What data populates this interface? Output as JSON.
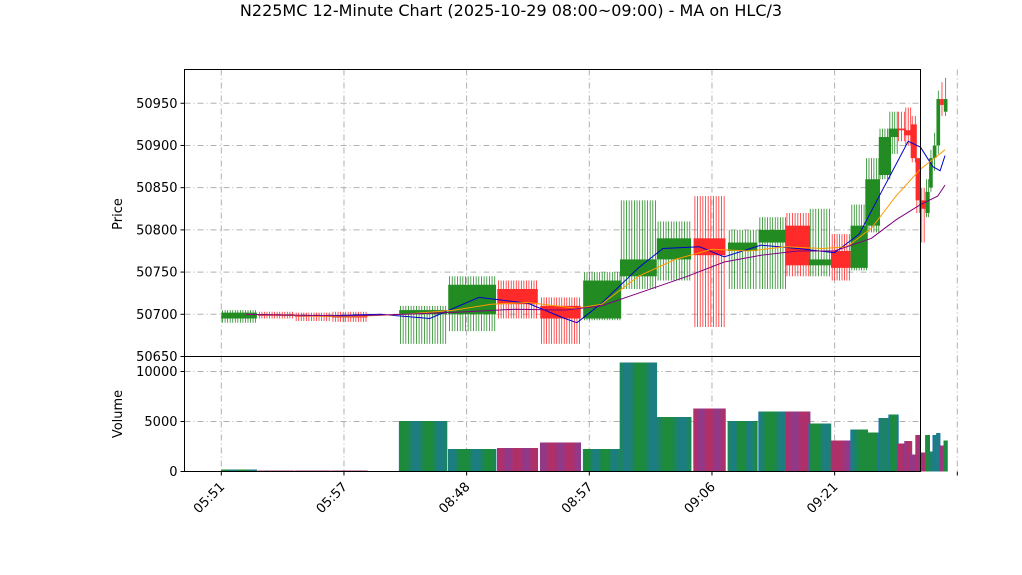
{
  "chart_data": {
    "type": "candlestick",
    "title": "N225MC 12-Minute Chart (2025-10-29 08:00~09:00) - MA on HLC/3",
    "price_panel": {
      "ylabel": "Price",
      "ylim": [
        50650,
        50990
      ],
      "yticks": [
        50650,
        50700,
        50750,
        50800,
        50850,
        50900,
        50950
      ],
      "grid": true
    },
    "volume_panel": {
      "ylabel": "Volume",
      "ylim": [
        0,
        11500
      ],
      "yticks": [
        0,
        5000,
        10000
      ],
      "grid": true
    },
    "x_axis": {
      "range": [
        -3,
        57
      ],
      "tick_positions": [
        0,
        10,
        20,
        30,
        40,
        50,
        60
      ],
      "tick_labels": [
        "05:51",
        "05:57",
        "08:48",
        "08:57",
        "09:06",
        "09:21",
        ""
      ]
    },
    "candles": [
      {
        "x": 0,
        "w": 2.9,
        "o": 50695,
        "h": 50705,
        "l": 50690,
        "c": 50702,
        "v": 200
      },
      {
        "x": 3,
        "w": 2.9,
        "o": 50700,
        "h": 50703,
        "l": 50695,
        "c": 50699,
        "v": 100
      },
      {
        "x": 6,
        "w": 2.9,
        "o": 50699,
        "h": 50702,
        "l": 50692,
        "c": 50698,
        "v": 100
      },
      {
        "x": 9,
        "w": 2.9,
        "o": 50698,
        "h": 50703,
        "l": 50691,
        "c": 50697,
        "v": 100
      },
      {
        "x": 14.5,
        "w": 3.9,
        "o": 50700,
        "h": 50710,
        "l": 50665,
        "c": 50705,
        "v": 5050
      },
      {
        "x": 18.5,
        "w": 3.9,
        "o": 50700,
        "h": 50745,
        "l": 50680,
        "c": 50735,
        "v": 2250
      },
      {
        "x": 22.5,
        "w": 3.3,
        "o": 50730,
        "h": 50740,
        "l": 50695,
        "c": 50712,
        "v": 2350
      },
      {
        "x": 26,
        "w": 3.3,
        "o": 50710,
        "h": 50720,
        "l": 50665,
        "c": 50695,
        "v": 2900
      },
      {
        "x": 29.5,
        "w": 3.1,
        "o": 50695,
        "h": 50750,
        "l": 50693,
        "c": 50740,
        "v": 2250
      },
      {
        "x": 32.5,
        "w": 3.0,
        "o": 50745,
        "h": 50835,
        "l": 50730,
        "c": 50765,
        "v": 10900
      },
      {
        "x": 35.5,
        "w": 2.8,
        "o": 50765,
        "h": 50810,
        "l": 50740,
        "c": 50790,
        "v": 5450
      },
      {
        "x": 38.5,
        "w": 2.6,
        "o": 50790,
        "h": 50840,
        "l": 50685,
        "c": 50770,
        "v": 6300
      },
      {
        "x": 41.3,
        "w": 2.4,
        "o": 50775,
        "h": 50800,
        "l": 50730,
        "c": 50785,
        "v": 5050
      },
      {
        "x": 43.8,
        "w": 2.3,
        "o": 50785,
        "h": 50815,
        "l": 50730,
        "c": 50800,
        "v": 6000
      },
      {
        "x": 46.0,
        "w": 2.0,
        "o": 50805,
        "h": 50820,
        "l": 50745,
        "c": 50758,
        "v": 6000
      },
      {
        "x": 47.9,
        "w": 1.8,
        "o": 50758,
        "h": 50825,
        "l": 50745,
        "c": 50765,
        "v": 4800
      },
      {
        "x": 49.7,
        "w": 1.6,
        "o": 50775,
        "h": 50795,
        "l": 50740,
        "c": 50755,
        "v": 3100
      },
      {
        "x": 51.3,
        "w": 1.4,
        "o": 50755,
        "h": 50830,
        "l": 50752,
        "c": 50805,
        "v": 4200
      },
      {
        "x": 52.5,
        "w": 1.2,
        "o": 50805,
        "h": 50885,
        "l": 50797,
        "c": 50860,
        "v": 3900
      },
      {
        "x": 53.6,
        "w": 1.0,
        "o": 50865,
        "h": 50920,
        "l": 50860,
        "c": 50910,
        "v": 5350
      },
      {
        "x": 54.4,
        "w": 0.8,
        "o": 50910,
        "h": 50940,
        "l": 50890,
        "c": 50920,
        "v": 5700
      },
      {
        "x": 55.1,
        "w": 0.7,
        "o": 50920,
        "h": 50940,
        "l": 50905,
        "c": 50918,
        "v": 2800
      },
      {
        "x": 55.7,
        "w": 0.6,
        "o": 50918,
        "h": 50945,
        "l": 50900,
        "c": 50912,
        "v": 3050
      },
      {
        "x": 56.2,
        "w": 0.5,
        "o": 50925,
        "h": 50935,
        "l": 50880,
        "c": 50885,
        "v": 1700
      },
      {
        "x": 56.6,
        "w": 0.4,
        "o": 50885,
        "h": 50885,
        "l": 50820,
        "c": 50835,
        "v": 3650
      },
      {
        "x": 57.0,
        "w": 0.4,
        "o": 50835,
        "h": 50850,
        "l": 50785,
        "c": 50825,
        "v": 1900
      },
      {
        "x": 57.4,
        "w": 0.35,
        "o": 50820,
        "h": 50860,
        "l": 50815,
        "c": 50845,
        "v": 3650
      },
      {
        "x": 57.7,
        "w": 0.3,
        "o": 50850,
        "h": 50895,
        "l": 50845,
        "c": 50885,
        "v": 2000
      },
      {
        "x": 58.0,
        "w": 0.3,
        "o": 50885,
        "h": 50915,
        "l": 50870,
        "c": 50900,
        "v": 3650
      },
      {
        "x": 58.3,
        "w": 0.3,
        "o": 50900,
        "h": 50965,
        "l": 50890,
        "c": 50955,
        "v": 3850
      },
      {
        "x": 58.6,
        "w": 0.3,
        "o": 50955,
        "h": 50975,
        "l": 50935,
        "c": 50948,
        "v": 2600
      },
      {
        "x": 58.9,
        "w": 0.3,
        "o": 50940,
        "h": 50980,
        "l": 50935,
        "c": 50955,
        "v": 3100
      }
    ],
    "moving_averages": [
      {
        "color": "#0000cc",
        "points": [
          [
            2,
            50700
          ],
          [
            8,
            50698
          ],
          [
            13,
            50700
          ],
          [
            17,
            50695
          ],
          [
            21,
            50720
          ],
          [
            25,
            50713
          ],
          [
            28,
            50695
          ],
          [
            29,
            50690
          ],
          [
            31,
            50713
          ],
          [
            34,
            50755
          ],
          [
            36,
            50778
          ],
          [
            39,
            50780
          ],
          [
            41,
            50768
          ],
          [
            44,
            50782
          ],
          [
            47,
            50778
          ],
          [
            50,
            50773
          ],
          [
            52,
            50795
          ],
          [
            54,
            50850
          ],
          [
            56,
            50905
          ],
          [
            57,
            50898
          ],
          [
            58,
            50875
          ],
          [
            58.6,
            50870
          ],
          [
            59,
            50888
          ]
        ]
      },
      {
        "color": "#ff9900",
        "points": [
          [
            2,
            50700
          ],
          [
            10,
            50697
          ],
          [
            15,
            50700
          ],
          [
            19,
            50705
          ],
          [
            22,
            50712
          ],
          [
            25,
            50714
          ],
          [
            29,
            50707
          ],
          [
            31,
            50712
          ],
          [
            34,
            50745
          ],
          [
            37,
            50765
          ],
          [
            40,
            50777
          ],
          [
            43,
            50775
          ],
          [
            46,
            50780
          ],
          [
            49,
            50778
          ],
          [
            51,
            50780
          ],
          [
            53,
            50802
          ],
          [
            55,
            50840
          ],
          [
            57,
            50872
          ],
          [
            58.4,
            50888
          ],
          [
            59,
            50895
          ]
        ]
      },
      {
        "color": "#800080",
        "points": [
          [
            2,
            50700
          ],
          [
            10,
            50698
          ],
          [
            15,
            50700
          ],
          [
            20,
            50703
          ],
          [
            24,
            50706
          ],
          [
            28,
            50705
          ],
          [
            31,
            50710
          ],
          [
            34,
            50725
          ],
          [
            38,
            50745
          ],
          [
            41,
            50762
          ],
          [
            44,
            50770
          ],
          [
            47,
            50775
          ],
          [
            50,
            50775
          ],
          [
            53,
            50790
          ],
          [
            55,
            50812
          ],
          [
            57,
            50830
          ],
          [
            58.4,
            50840
          ],
          [
            59,
            50853
          ]
        ]
      }
    ],
    "colors": {
      "up": "#228b22",
      "down": "#ff2a2a",
      "volume_edge_up": "#1f77b4",
      "volume_edge_down": "#7b3f9e",
      "grid": "#b0b0b0"
    }
  }
}
